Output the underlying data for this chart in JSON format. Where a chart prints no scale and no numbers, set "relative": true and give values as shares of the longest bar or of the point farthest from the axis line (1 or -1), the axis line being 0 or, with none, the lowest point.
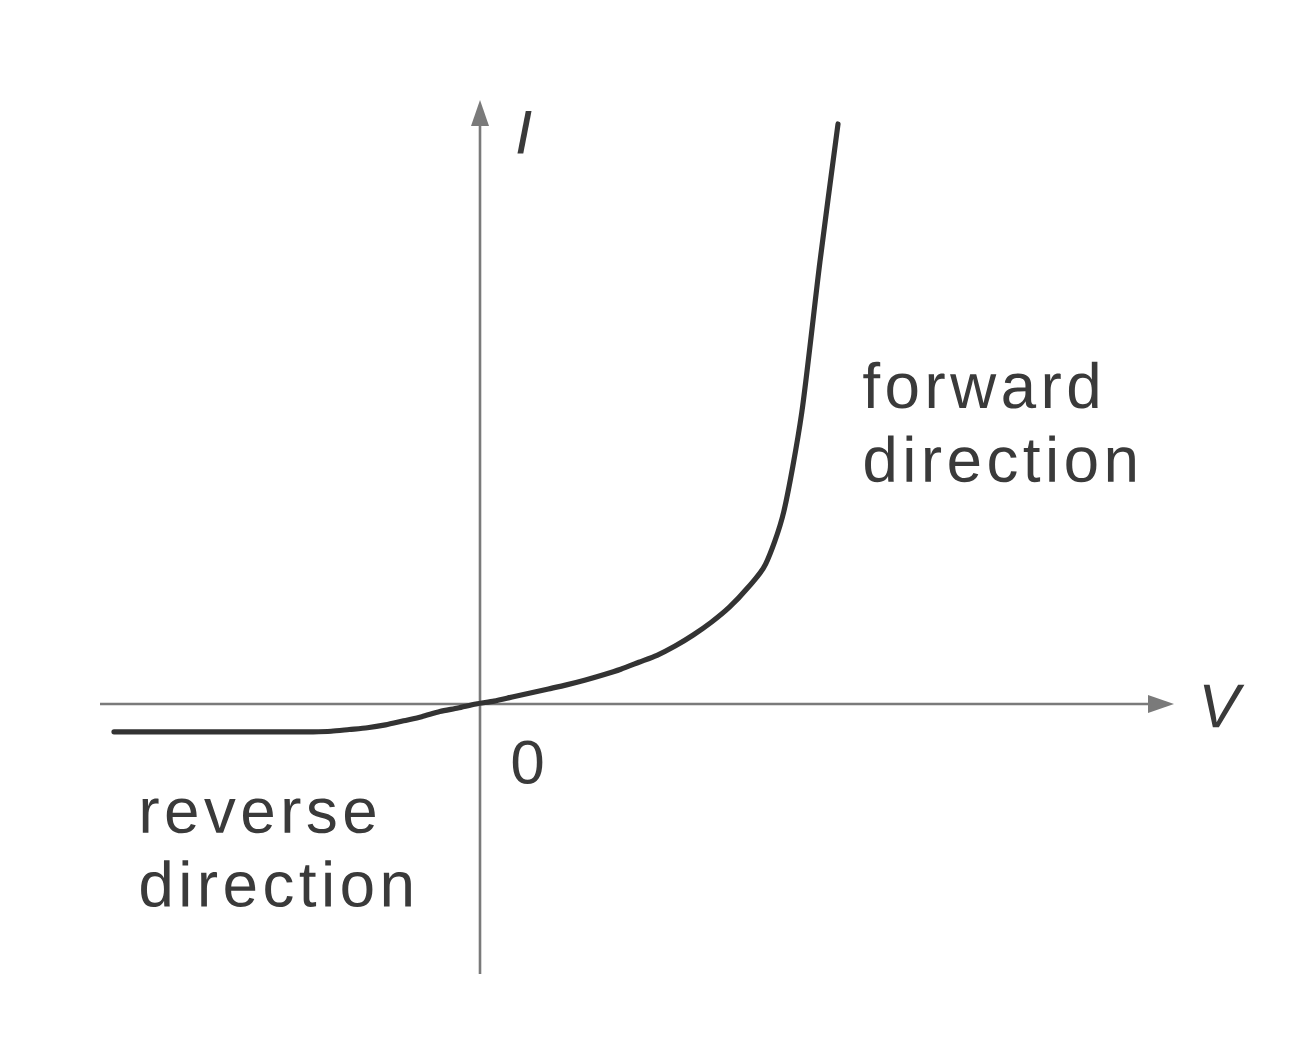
{
  "chart_data": {
    "type": "line",
    "relative": true,
    "ylabel": "I",
    "categories": [
      null,
      null,
      null,
      null,
      null,
      null,
      null,
      null,
      null,
      null,
      null,
      null,
      null,
      null,
      null,
      null,
      null,
      null,
      null,
      null,
      null,
      null,
      null,
      null,
      null,
      null,
      null,
      null,
      null,
      null,
      null,
      null,
      null,
      null,
      null,
      null,
      null,
      null,
      null,
      null,
      null
    ],
    "values": [
      -0.048,
      -0.048,
      -0.048,
      -0.048,
      -0.048,
      -0.048,
      -0.048,
      -0.048,
      -0.048,
      -0.048,
      -0.048,
      -0.048,
      -0.047,
      -0.044,
      -0.041,
      -0.036,
      -0.029,
      -0.022,
      -0.013,
      -0.007,
      0,
      0.005,
      0.012,
      0.019,
      0.026,
      0.033,
      0.041,
      0.05,
      0.06,
      0.072,
      0.084,
      0.1,
      0.119,
      0.141,
      0.167,
      0.2,
      0.241,
      0.331,
      0.503,
      0.762,
      1.0
    ],
    "color": "#333333",
    "line_style": "solid",
    "annotations": [
      "forward direction",
      "reverse direction",
      "0",
      "V"
    ]
  }
}
